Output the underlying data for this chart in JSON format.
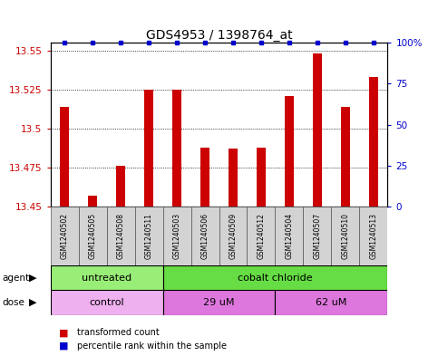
{
  "title": "GDS4953 / 1398764_at",
  "samples": [
    "GSM1240502",
    "GSM1240505",
    "GSM1240508",
    "GSM1240511",
    "GSM1240503",
    "GSM1240506",
    "GSM1240509",
    "GSM1240512",
    "GSM1240504",
    "GSM1240507",
    "GSM1240510",
    "GSM1240513"
  ],
  "red_values": [
    13.514,
    13.457,
    13.476,
    13.525,
    13.525,
    13.488,
    13.487,
    13.488,
    13.521,
    13.548,
    13.514,
    13.533
  ],
  "blue_values": [
    100,
    100,
    100,
    100,
    100,
    100,
    100,
    100,
    100,
    100,
    100,
    100
  ],
  "ylim_left": [
    13.45,
    13.555
  ],
  "ylim_right": [
    0,
    100
  ],
  "yticks_left": [
    13.45,
    13.475,
    13.5,
    13.525,
    13.55
  ],
  "yticks_right": [
    0,
    25,
    50,
    75,
    100
  ],
  "ytick_labels_right": [
    "0",
    "25",
    "50",
    "75",
    "100%"
  ],
  "agent_groups": [
    {
      "label": "untreated",
      "start": 0,
      "end": 4,
      "color": "#99ee77"
    },
    {
      "label": "cobalt chloride",
      "start": 4,
      "end": 12,
      "color": "#66dd44"
    }
  ],
  "dose_groups": [
    {
      "label": "control",
      "start": 0,
      "end": 4,
      "color": "#eeb0ee"
    },
    {
      "label": "29 uM",
      "start": 4,
      "end": 8,
      "color": "#dd77dd"
    },
    {
      "label": "62 uM",
      "start": 8,
      "end": 12,
      "color": "#dd77dd"
    }
  ],
  "bar_color": "#cc0000",
  "dot_color": "#0000cc",
  "background_color": "#ffffff",
  "plot_bg_color": "#ffffff",
  "label_color_red": "#cc0000",
  "label_color_blue": "#0000cc",
  "bar_width": 0.35,
  "legend_items": [
    {
      "color": "#cc0000",
      "label": "transformed count"
    },
    {
      "color": "#0000cc",
      "label": "percentile rank within the sample"
    }
  ]
}
